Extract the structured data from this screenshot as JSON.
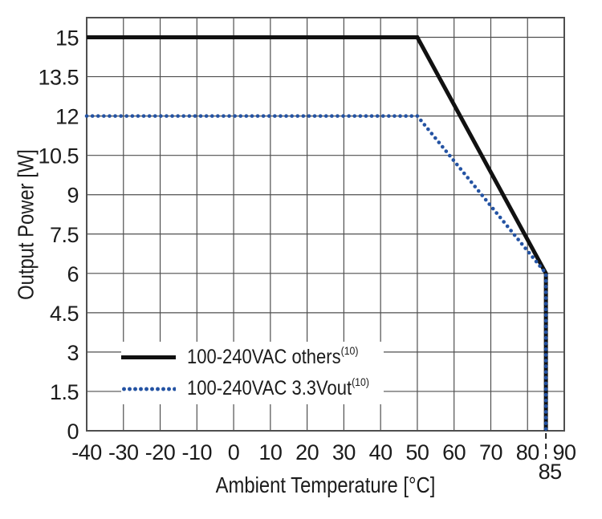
{
  "figure": {
    "background": "#ffffff",
    "text_color": "#1b1b1b",
    "grid_color": "#4f4f4f",
    "frame_color": "#4f4f4f"
  },
  "chart_data": {
    "type": "line",
    "title": "",
    "xlabel": "Ambient Temperature [°C]",
    "ylabel": "Output Power [W]",
    "xlim": [
      -40,
      90
    ],
    "ylim": [
      0,
      15.75
    ],
    "x_ticks": [
      -40,
      -30,
      -20,
      -10,
      0,
      10,
      20,
      30,
      40,
      50,
      60,
      70,
      80,
      90
    ],
    "y_ticks": [
      0,
      1.5,
      3,
      4.5,
      6,
      7.5,
      9,
      10.5,
      12,
      13.5,
      15
    ],
    "grid": true,
    "legend_position": "inside-lower-left",
    "x_marker": {
      "value": 85,
      "label": "85"
    },
    "series": [
      {
        "name": "100-240VAC others",
        "note": "(10)",
        "line_style": "solid",
        "color": "#111111",
        "points": [
          [
            -40,
            15
          ],
          [
            50,
            15
          ],
          [
            85,
            6
          ],
          [
            85,
            0
          ]
        ]
      },
      {
        "name": "100-240VAC 3.3Vout",
        "note": "(10)",
        "line_style": "dotted",
        "color": "#2453a3",
        "points": [
          [
            -40,
            12
          ],
          [
            50,
            12
          ],
          [
            85,
            6
          ],
          [
            85,
            0
          ]
        ]
      }
    ]
  }
}
